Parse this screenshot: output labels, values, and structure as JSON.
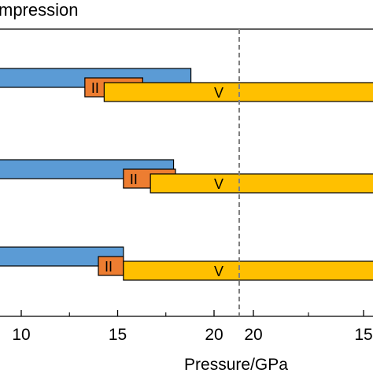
{
  "header": {
    "title": "mpression"
  },
  "colors": {
    "blue": "#5b9bd5",
    "orange": "#ed7d31",
    "yellow": "#ffc000",
    "divider": "#808080",
    "axis": "#000000"
  },
  "chart_data": {
    "type": "bar",
    "orientation": "horizontal",
    "xlabel": "Pressure/GPa",
    "panels": [
      {
        "direction": "increasing",
        "xlim": [
          8.5,
          21.2
        ],
        "ticks_major": [
          10,
          15,
          20
        ],
        "tick_labels": [
          "10",
          "15",
          "20"
        ],
        "ticks_minor": [
          12.5,
          17.5
        ]
      },
      {
        "direction": "decreasing",
        "xlim": [
          20.8,
          14.8
        ],
        "ticks_major": [
          20,
          15
        ],
        "tick_labels": [
          "20",
          "15"
        ],
        "ticks_minor": [
          17.5
        ]
      }
    ],
    "rows": [
      {
        "bars": [
          {
            "series": "blue",
            "start": 8.5,
            "end": 18.8,
            "label": ""
          },
          {
            "series": "orange",
            "start": 13.3,
            "end": 16.3,
            "label": "II"
          },
          {
            "series": "yellow",
            "start": 14.3,
            "end": 14.8,
            "label": "V"
          }
        ]
      },
      {
        "bars": [
          {
            "series": "blue",
            "start": 8.5,
            "end": 17.9,
            "label": ""
          },
          {
            "series": "orange",
            "start": 15.3,
            "end": 18.0,
            "label": "II"
          },
          {
            "series": "yellow",
            "start": 16.7,
            "end": 14.8,
            "label": "V"
          }
        ]
      },
      {
        "bars": [
          {
            "series": "blue",
            "start": 8.5,
            "end": 15.3,
            "label": ""
          },
          {
            "series": "orange",
            "start": 14.0,
            "end": 15.3,
            "label": "II"
          },
          {
            "series": "yellow",
            "start": 15.3,
            "end": 14.8,
            "label": "V"
          }
        ]
      }
    ]
  }
}
